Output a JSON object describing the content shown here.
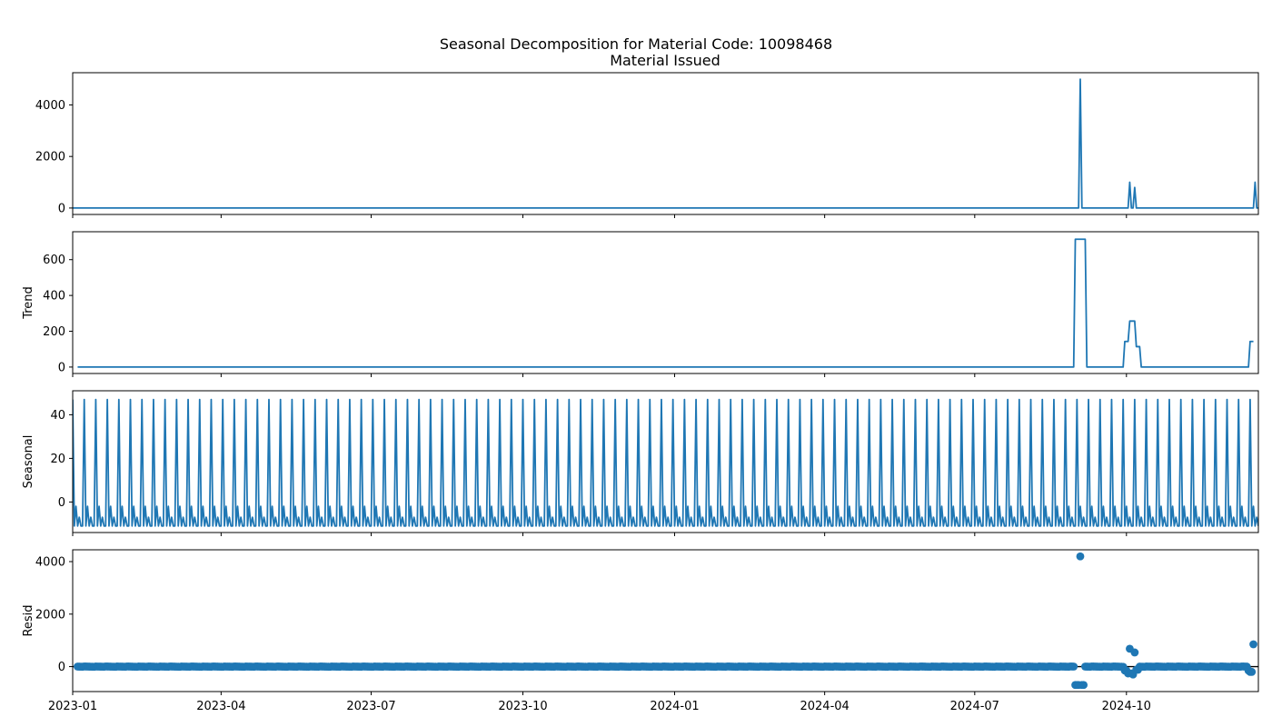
{
  "chart_data": {
    "type": "line",
    "title": "Seasonal Decomposition for Material Code: 10098468",
    "subtitle": "Material Issued",
    "series_color": "#1f77b4",
    "baseline_color": "#000000",
    "x_range": [
      "2023-01-01",
      "2024-12-20"
    ],
    "x_ticks": [
      {
        "date": "2023-01-01",
        "label": "2023-01"
      },
      {
        "date": "2023-04-01",
        "label": "2023-04"
      },
      {
        "date": "2023-07-01",
        "label": "2023-07"
      },
      {
        "date": "2023-10-01",
        "label": "2023-10"
      },
      {
        "date": "2024-01-01",
        "label": "2024-01"
      },
      {
        "date": "2024-04-01",
        "label": "2024-04"
      },
      {
        "date": "2024-07-01",
        "label": "2024-07"
      },
      {
        "date": "2024-10-01",
        "label": "2024-10"
      }
    ],
    "panels": [
      {
        "name": "observed",
        "ylabel": "",
        "kind": "line",
        "ylim": [
          -250,
          5250
        ],
        "yticks": [
          0,
          2000,
          4000
        ],
        "baseline_value": 0,
        "spikes": [
          {
            "date": "2024-09-03",
            "value": 5000
          },
          {
            "date": "2024-10-03",
            "value": 1000
          },
          {
            "date": "2024-10-06",
            "value": 800
          },
          {
            "date": "2024-12-18",
            "value": 1000
          }
        ]
      },
      {
        "name": "trend",
        "ylabel": "Trend",
        "kind": "line",
        "ylim": [
          -36,
          756
        ],
        "yticks": [
          0,
          200,
          400,
          600
        ],
        "start_date": "2023-01-04",
        "end_date": "2024-12-17",
        "steps": [
          {
            "date": "2024-08-31",
            "value": 714
          },
          {
            "date": "2024-09-07",
            "value": 0
          },
          {
            "date": "2024-09-30",
            "value": 143
          },
          {
            "date": "2024-10-03",
            "value": 257
          },
          {
            "date": "2024-10-07",
            "value": 114
          },
          {
            "date": "2024-10-10",
            "value": 0
          },
          {
            "date": "2024-12-15",
            "value": 143
          }
        ]
      },
      {
        "name": "seasonal",
        "ylabel": "Seasonal",
        "kind": "line",
        "ylim": [
          -14,
          51
        ],
        "yticks": [
          0,
          20,
          40
        ],
        "period_days": 7,
        "pattern": [
          47,
          -11,
          -2,
          -11,
          -7,
          -11,
          -11
        ]
      },
      {
        "name": "resid",
        "ylabel": "Resid",
        "kind": "scatter",
        "ylim": [
          -950,
          4450
        ],
        "yticks": [
          0,
          2000,
          4000
        ],
        "start_date": "2023-01-04",
        "end_date": "2024-12-17",
        "outliers": [
          {
            "date": "2024-08-31",
            "value": -700
          },
          {
            "date": "2024-09-01",
            "value": -700
          },
          {
            "date": "2024-09-02",
            "value": -700
          },
          {
            "date": "2024-09-03",
            "value": 4200
          },
          {
            "date": "2024-09-04",
            "value": -700
          },
          {
            "date": "2024-09-05",
            "value": -700
          },
          {
            "date": "2024-09-30",
            "value": -150
          },
          {
            "date": "2024-10-01",
            "value": -150
          },
          {
            "date": "2024-10-02",
            "value": -260
          },
          {
            "date": "2024-10-03",
            "value": 680
          },
          {
            "date": "2024-10-04",
            "value": -260
          },
          {
            "date": "2024-10-05",
            "value": -300
          },
          {
            "date": "2024-10-06",
            "value": 540
          },
          {
            "date": "2024-10-07",
            "value": -120
          },
          {
            "date": "2024-10-08",
            "value": -120
          },
          {
            "date": "2024-12-14",
            "value": -150
          },
          {
            "date": "2024-12-15",
            "value": -200
          },
          {
            "date": "2024-12-16",
            "value": -200
          },
          {
            "date": "2024-12-17",
            "value": 850
          }
        ]
      }
    ]
  }
}
